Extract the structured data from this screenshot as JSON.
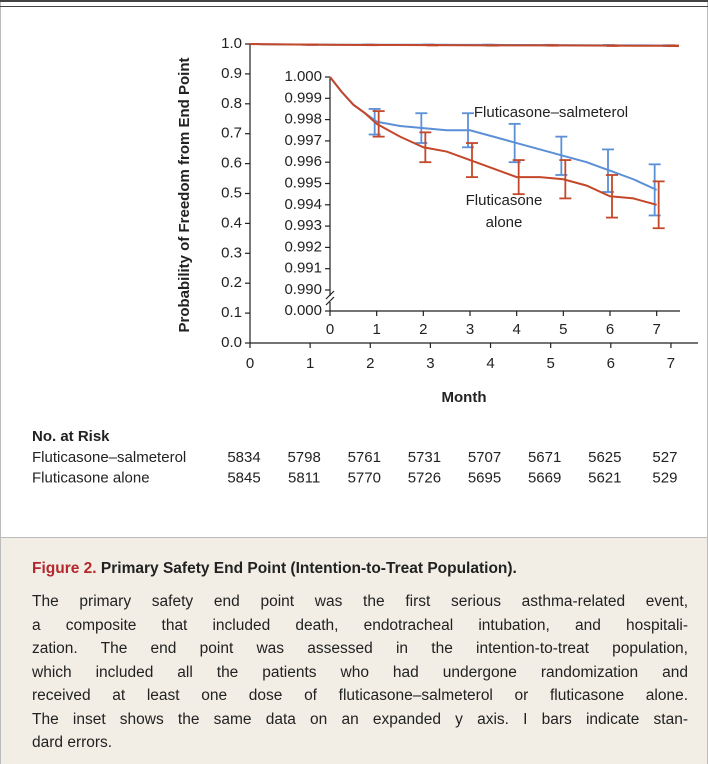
{
  "chart_data": {
    "type": "line",
    "ylabel": "Probability of Freedom from End Point",
    "xlabel": "Month",
    "xlim": [
      0,
      7.45
    ],
    "xticks": [
      0,
      1,
      2,
      3,
      4,
      5,
      6,
      7
    ],
    "ylim": [
      0,
      1.0
    ],
    "yticks": [
      {
        "value": 0,
        "label": "0.0"
      },
      0.1,
      0.2,
      0.3,
      0.4,
      0.5,
      0.6,
      0.7,
      0.8,
      0.9,
      {
        "value": 1.0,
        "label": "1.0"
      }
    ],
    "x": [
      0,
      0.25,
      0.5,
      0.75,
      1,
      1.5,
      2,
      2.5,
      3,
      3.5,
      4,
      4.5,
      5,
      5.5,
      6,
      6.5,
      7
    ],
    "series": [
      {
        "name": "Fluticasone–salmeterol",
        "color": "#5b8fd6",
        "values": [
          1.0,
          0.9993,
          0.9987,
          0.9983,
          0.9979,
          0.9977,
          0.9976,
          0.9975,
          0.9975,
          0.9972,
          0.9969,
          0.9966,
          0.9963,
          0.996,
          0.9956,
          0.9952,
          0.9947
        ],
        "error_bars": {
          "x": [
            1,
            2,
            3,
            4,
            5,
            6,
            7
          ],
          "values": [
            0.9979,
            0.9976,
            0.9975,
            0.9969,
            0.9963,
            0.9956,
            0.9947
          ],
          "errors": [
            0.0006,
            0.0007,
            0.0008,
            0.0009,
            0.0009,
            0.001,
            0.0012
          ]
        }
      },
      {
        "name": "Fluticasone alone",
        "color": "#c4472a",
        "values": [
          1.0,
          0.9993,
          0.9987,
          0.9983,
          0.9978,
          0.9972,
          0.9967,
          0.9965,
          0.9961,
          0.9957,
          0.9953,
          0.9953,
          0.9952,
          0.9949,
          0.9944,
          0.9943,
          0.994
        ],
        "error_bars": {
          "x": [
            1,
            2,
            3,
            4,
            5,
            6,
            7
          ],
          "values": [
            0.9978,
            0.9967,
            0.9961,
            0.9953,
            0.9952,
            0.9944,
            0.994
          ],
          "errors": [
            0.0006,
            0.0007,
            0.0008,
            0.0008,
            0.0009,
            0.001,
            0.0011
          ]
        }
      }
    ],
    "inset": {
      "xlim": [
        0,
        7.5
      ],
      "xticks": [
        0,
        1,
        2,
        3,
        4,
        5,
        6,
        7
      ],
      "ylim": [
        0,
        1.0
      ],
      "ybreak": [
        0,
        0.99
      ],
      "yticks": [
        {
          "value": 0,
          "label": "0.000"
        },
        {
          "value": 0.99,
          "label": "0.990"
        },
        {
          "value": 0.991,
          "label": "0.991"
        },
        {
          "value": 0.992,
          "label": "0.992"
        },
        {
          "value": 0.993,
          "label": "0.993"
        },
        {
          "value": 0.994,
          "label": "0.994"
        },
        {
          "value": 0.995,
          "label": "0.995"
        },
        {
          "value": 0.996,
          "label": "0.996"
        },
        {
          "value": 0.997,
          "label": "0.997"
        },
        {
          "value": 0.998,
          "label": "0.998"
        },
        {
          "value": 0.999,
          "label": "0.999"
        },
        {
          "value": 1.0,
          "label": "1.000"
        }
      ],
      "annotations": [
        [
          "Fluticasone–salmeterol"
        ],
        [
          "Fluticasone",
          "alone"
        ]
      ]
    }
  },
  "risk_table": {
    "title": "No. at Risk",
    "rows": [
      {
        "name": "Fluticasone–salmeterol",
        "values": [
          "5834",
          "5798",
          "5761",
          "5731",
          "5707",
          "5671",
          "5625",
          "527"
        ]
      },
      {
        "name": "Fluticasone alone",
        "values": [
          "5845",
          "5811",
          "5770",
          "5726",
          "5695",
          "5669",
          "5621",
          "529"
        ]
      }
    ]
  },
  "caption": {
    "label": "Figure 2.",
    "title": "Primary Safety End Point (Intention-to-Treat Population).",
    "lines": [
      "The primary safety end point was the first serious asthma-related event,",
      "a composite that included death, endotracheal intubation, and hospitali-",
      "zation. The end point was assessed in the intention-to-treat population,",
      "which included all the patients who had undergone randomization and",
      "received at least one dose of fluticasone–salmeterol or fluticasone alone.",
      "The inset shows the same data on an expanded y axis. I bars indicate stan-",
      "dard errors."
    ]
  }
}
